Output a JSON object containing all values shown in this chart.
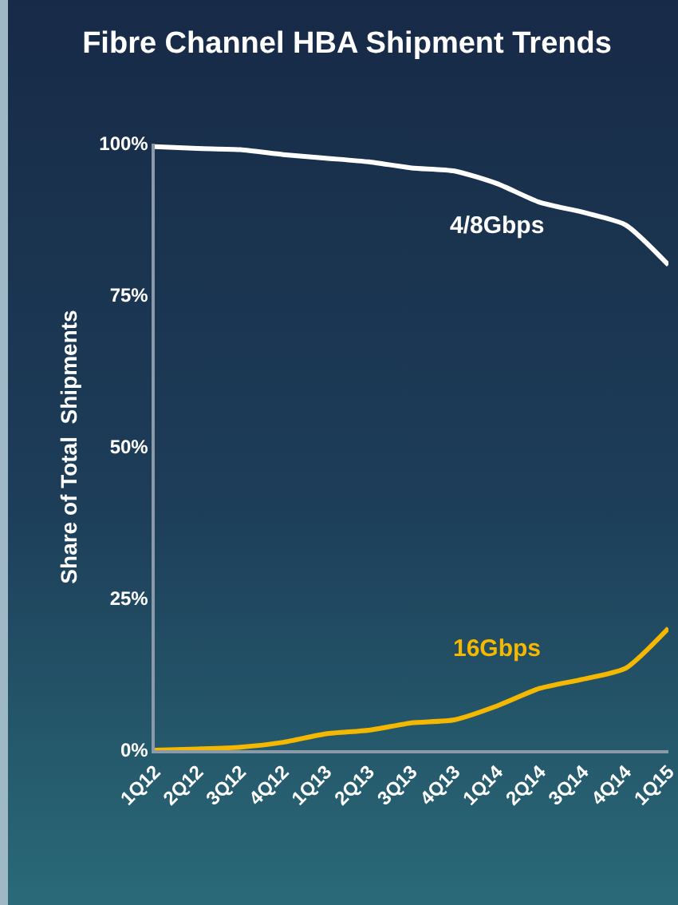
{
  "chart_data": {
    "type": "line",
    "title": "Fibre Channel HBA Shipment Trends",
    "ylabel": "Share of Total  Shipments",
    "categories": [
      "1Q12",
      "2Q12",
      "3Q12",
      "4Q12",
      "1Q13",
      "2Q13",
      "3Q13",
      "4Q13",
      "1Q14",
      "2Q14",
      "3Q14",
      "4Q14",
      "1Q15"
    ],
    "series": [
      {
        "name": "4/8Gbps",
        "color": "#ffffff",
        "values": [
          99.5,
          99.2,
          99,
          98.2,
          97.6,
          97,
          96,
          95.5,
          93.4,
          90.3,
          88.7,
          86.6,
          80
        ]
      },
      {
        "name": "16Gbps",
        "color": "#f5b800",
        "values": [
          0,
          0.2,
          0.5,
          1.3,
          2.7,
          3.3,
          4.5,
          5,
          7.3,
          10.2,
          11.7,
          13.5,
          20.1
        ]
      }
    ],
    "ylim": [
      0,
      100
    ],
    "yticks": [
      {
        "value": 0,
        "label": "0%"
      },
      {
        "value": 25,
        "label": "25%"
      },
      {
        "value": 50,
        "label": "50%"
      },
      {
        "value": 75,
        "label": "75%"
      },
      {
        "value": 100,
        "label": "100%"
      }
    ],
    "grid": false,
    "legend": false,
    "marker": "none",
    "line_style": "solid"
  }
}
